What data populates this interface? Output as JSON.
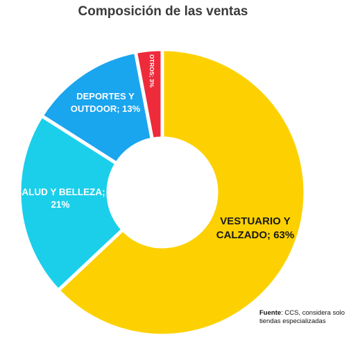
{
  "chart_data": {
    "type": "pie",
    "title": "Composición de las ventas",
    "slices": [
      {
        "label_lines": [
          "VESTUARIO Y",
          "CALZADO; 63%"
        ],
        "value": 63,
        "color": "#FDD101"
      },
      {
        "label_lines": [
          "SALUD Y BELLEZA;",
          "21%"
        ],
        "value": 21,
        "color": "#1BCFEA"
      },
      {
        "label_lines": [
          "DEPORTES Y",
          "OUTDOOR; 13%"
        ],
        "value": 13,
        "color": "#1AA5EF"
      },
      {
        "label_lines": [
          "OTROS; 3%"
        ],
        "value": 3,
        "color": "#EE2B3B"
      }
    ]
  },
  "source": {
    "label": "Fuente",
    "text": ": CCS, considera solo tiendas especializadas"
  }
}
